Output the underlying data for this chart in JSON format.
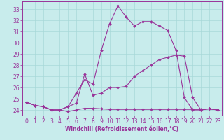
{
  "title": "",
  "xlabel": "Windchill (Refroidissement éolien,°C)",
  "bg_color": "#c8ecec",
  "grid_color": "#a8d8d8",
  "line_color": "#993399",
  "spine_color": "#993399",
  "xlim": [
    -0.5,
    23.5
  ],
  "ylim": [
    23.5,
    33.7
  ],
  "xticks": [
    0,
    1,
    2,
    3,
    4,
    5,
    6,
    7,
    8,
    9,
    10,
    11,
    12,
    13,
    14,
    15,
    16,
    17,
    18,
    19,
    20,
    21,
    22,
    23
  ],
  "yticks": [
    24,
    25,
    26,
    27,
    28,
    29,
    30,
    31,
    32,
    33
  ],
  "line1_x": [
    0,
    1,
    2,
    3,
    4,
    5,
    6,
    7,
    8,
    9,
    10,
    11,
    12,
    13,
    14,
    15,
    16,
    17,
    18,
    19,
    20,
    21,
    22,
    23
  ],
  "line1_y": [
    24.7,
    24.4,
    24.3,
    24.0,
    24.0,
    23.85,
    24.0,
    24.15,
    24.15,
    24.1,
    24.05,
    24.05,
    24.05,
    24.05,
    24.05,
    24.05,
    24.05,
    24.05,
    24.05,
    24.05,
    24.05,
    24.05,
    24.1,
    24.0
  ],
  "line2_x": [
    0,
    1,
    2,
    3,
    4,
    5,
    6,
    7,
    8,
    9,
    10,
    11,
    12,
    13,
    14,
    15,
    16,
    17,
    18,
    19,
    20,
    21,
    22,
    23
  ],
  "line2_y": [
    24.7,
    24.4,
    24.3,
    24.0,
    24.0,
    24.3,
    25.5,
    26.7,
    26.3,
    29.3,
    31.7,
    33.3,
    32.3,
    31.5,
    31.9,
    31.9,
    31.5,
    31.1,
    29.3,
    25.1,
    24.0,
    24.0,
    24.1,
    24.0
  ],
  "line3_x": [
    0,
    1,
    2,
    3,
    4,
    5,
    6,
    7,
    8,
    9,
    10,
    11,
    12,
    13,
    14,
    15,
    16,
    17,
    18,
    19,
    20,
    21,
    22,
    23
  ],
  "line3_y": [
    24.7,
    24.4,
    24.3,
    24.0,
    24.0,
    24.3,
    24.6,
    27.2,
    25.3,
    25.5,
    26.0,
    26.0,
    26.1,
    27.0,
    27.5,
    28.0,
    28.5,
    28.7,
    28.9,
    28.8,
    25.1,
    24.0,
    24.1,
    24.0
  ],
  "tick_fontsize": 5.5,
  "xlabel_fontsize": 5.5
}
